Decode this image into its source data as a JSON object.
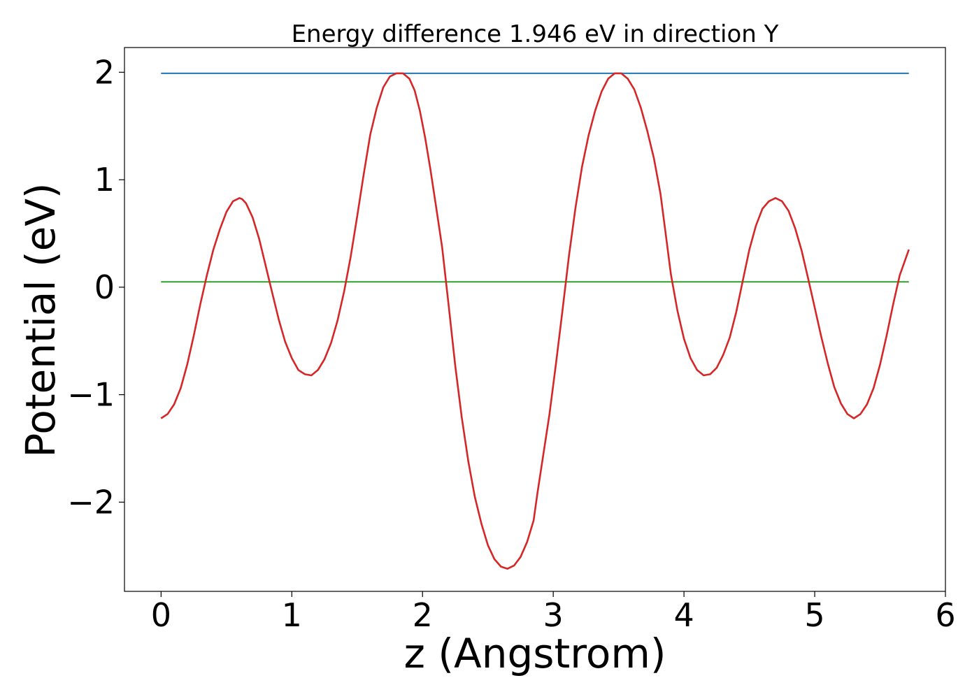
{
  "chart_data": {
    "type": "line",
    "title": "Energy difference 1.946 eV in direction Y",
    "xlabel": "z (Angstrom)",
    "ylabel": "Potential (eV)",
    "xlim": [
      -0.28,
      6.0
    ],
    "ylim": [
      -2.83,
      2.23
    ],
    "xticks": [
      0,
      1,
      2,
      3,
      4,
      5,
      6
    ],
    "xtick_labels": [
      "0",
      "1",
      "2",
      "3",
      "4",
      "5",
      "6"
    ],
    "yticks": [
      -2,
      -1,
      0,
      1,
      2
    ],
    "ytick_labels": [
      "−2",
      "−1",
      "0",
      "1",
      "2"
    ],
    "grid": false,
    "legend": "none",
    "series": [
      {
        "color": "#d62728",
        "style": "solid",
        "x": [
          0.0,
          0.05,
          0.1,
          0.15,
          0.2,
          0.25,
          0.3,
          0.35,
          0.4,
          0.45,
          0.5,
          0.55,
          0.6,
          0.62,
          0.65,
          0.7,
          0.75,
          0.8,
          0.85,
          0.9,
          0.95,
          1.0,
          1.05,
          1.1,
          1.15,
          1.2,
          1.25,
          1.3,
          1.35,
          1.4,
          1.45,
          1.5,
          1.55,
          1.6,
          1.65,
          1.7,
          1.75,
          1.8,
          1.85,
          1.9,
          1.94,
          1.98,
          2.02,
          2.06,
          2.1,
          2.15,
          2.2,
          2.25,
          2.3,
          2.35,
          2.4,
          2.45,
          2.5,
          2.55,
          2.6,
          2.65,
          2.7,
          2.75,
          2.8,
          2.85,
          2.88,
          2.92,
          2.97,
          3.02,
          3.07,
          3.12,
          3.17,
          3.22,
          3.27,
          3.32,
          3.37,
          3.42,
          3.47,
          3.52,
          3.57,
          3.62,
          3.67,
          3.72,
          3.77,
          3.82,
          3.86,
          3.9,
          3.95,
          4.0,
          4.05,
          4.1,
          4.15,
          4.2,
          4.25,
          4.3,
          4.35,
          4.4,
          4.45,
          4.5,
          4.55,
          4.6,
          4.65,
          4.7,
          4.75,
          4.8,
          4.85,
          4.9,
          4.95,
          5.0,
          5.05,
          5.1,
          5.15,
          5.2,
          5.25,
          5.3,
          5.35,
          5.4,
          5.45,
          5.5,
          5.55,
          5.6,
          5.65,
          5.72
        ],
        "y": [
          -1.22,
          -1.18,
          -1.09,
          -0.94,
          -0.72,
          -0.45,
          -0.16,
          0.11,
          0.35,
          0.54,
          0.7,
          0.8,
          0.83,
          0.82,
          0.78,
          0.65,
          0.45,
          0.2,
          -0.05,
          -0.3,
          -0.51,
          -0.66,
          -0.77,
          -0.81,
          -0.82,
          -0.77,
          -0.67,
          -0.52,
          -0.31,
          -0.04,
          0.28,
          0.66,
          1.05,
          1.42,
          1.67,
          1.86,
          1.96,
          1.99,
          1.99,
          1.94,
          1.83,
          1.64,
          1.39,
          1.1,
          0.78,
          0.37,
          -0.17,
          -0.73,
          -1.21,
          -1.62,
          -1.95,
          -2.2,
          -2.4,
          -2.53,
          -2.6,
          -2.62,
          -2.59,
          -2.51,
          -2.37,
          -2.17,
          -1.91,
          -1.59,
          -1.19,
          -0.72,
          -0.22,
          0.29,
          0.74,
          1.12,
          1.41,
          1.64,
          1.82,
          1.94,
          1.99,
          1.99,
          1.94,
          1.84,
          1.67,
          1.45,
          1.2,
          0.87,
          0.5,
          0.12,
          -0.22,
          -0.48,
          -0.66,
          -0.77,
          -0.82,
          -0.81,
          -0.75,
          -0.63,
          -0.47,
          -0.23,
          0.06,
          0.35,
          0.57,
          0.73,
          0.8,
          0.83,
          0.8,
          0.71,
          0.55,
          0.34,
          0.08,
          -0.19,
          -0.46,
          -0.71,
          -0.93,
          -1.08,
          -1.18,
          -1.22,
          -1.18,
          -1.09,
          -0.94,
          -0.72,
          -0.45,
          -0.16,
          0.11,
          0.35
        ]
      },
      {
        "color": "#1f77b4",
        "style": "solid",
        "x": [
          0.0,
          5.72
        ],
        "y": [
          1.99,
          1.99
        ]
      },
      {
        "color": "#2ca02c",
        "style": "solid",
        "x": [
          0.0,
          5.72
        ],
        "y": [
          0.05,
          0.05
        ]
      }
    ]
  }
}
